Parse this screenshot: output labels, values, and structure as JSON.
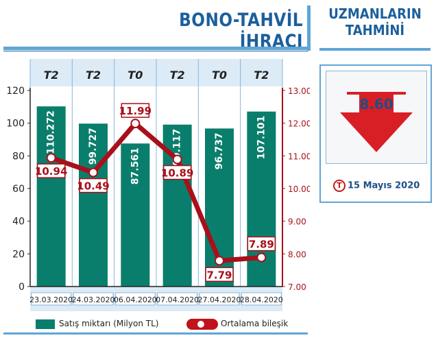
{
  "header": {
    "title": "BONO-TAHVİL İHRACI"
  },
  "expectation": {
    "title_line1": "UZMANLARIN",
    "title_line2": "TAHMİNİ",
    "value": "8.60",
    "t_icon": "T",
    "date": "15 Mayıs 2020",
    "arrow_icon": "down-arrow-icon"
  },
  "legend": {
    "bars": "Satış miktarı (Milyon TL)",
    "line": "Ortalama bileşik"
  },
  "colors": {
    "bar": "#0a7e6c",
    "line": "#a8101a",
    "arrow": "#d81f26",
    "header_band": "#dcebf6",
    "accent": "#1c5f9c"
  },
  "chart_data": {
    "type": "bar",
    "categories": [
      "23.03.2020",
      "24.03.2020",
      "06.04.2020",
      "07.04.2020",
      "27.04.2020",
      "28.04.2020"
    ],
    "group_labels": [
      "T2",
      "T2",
      "T0",
      "T2",
      "T0",
      "T2"
    ],
    "series": [
      {
        "name": "Satış miktarı (Milyon TL)",
        "type": "bar",
        "axis": "left",
        "values": [
          110.272,
          99.727,
          87.561,
          99.117,
          96.737,
          107.101
        ],
        "labels": [
          "110.272",
          "99.727",
          "87.561",
          "99.117",
          "96.737",
          "107.101"
        ]
      },
      {
        "name": "Ortalama bileşik",
        "type": "line",
        "axis": "right",
        "values": [
          10.94,
          10.49,
          11.99,
          10.89,
          7.79,
          7.89
        ],
        "labels": [
          "10.94",
          "10.49",
          "11.99",
          "10.89",
          "7.79",
          "7.89"
        ]
      }
    ],
    "y_left": {
      "min": 0,
      "max": 120,
      "ticks": [
        "0",
        "20",
        "40",
        "60",
        "80",
        "100",
        "120"
      ]
    },
    "y_right": {
      "min": 7,
      "max": 13,
      "ticks": [
        "7.00",
        "8.00",
        "9.00",
        "10.00",
        "11.00",
        "12.00",
        "13.00"
      ]
    },
    "grid": false,
    "legend_position": "bottom"
  }
}
